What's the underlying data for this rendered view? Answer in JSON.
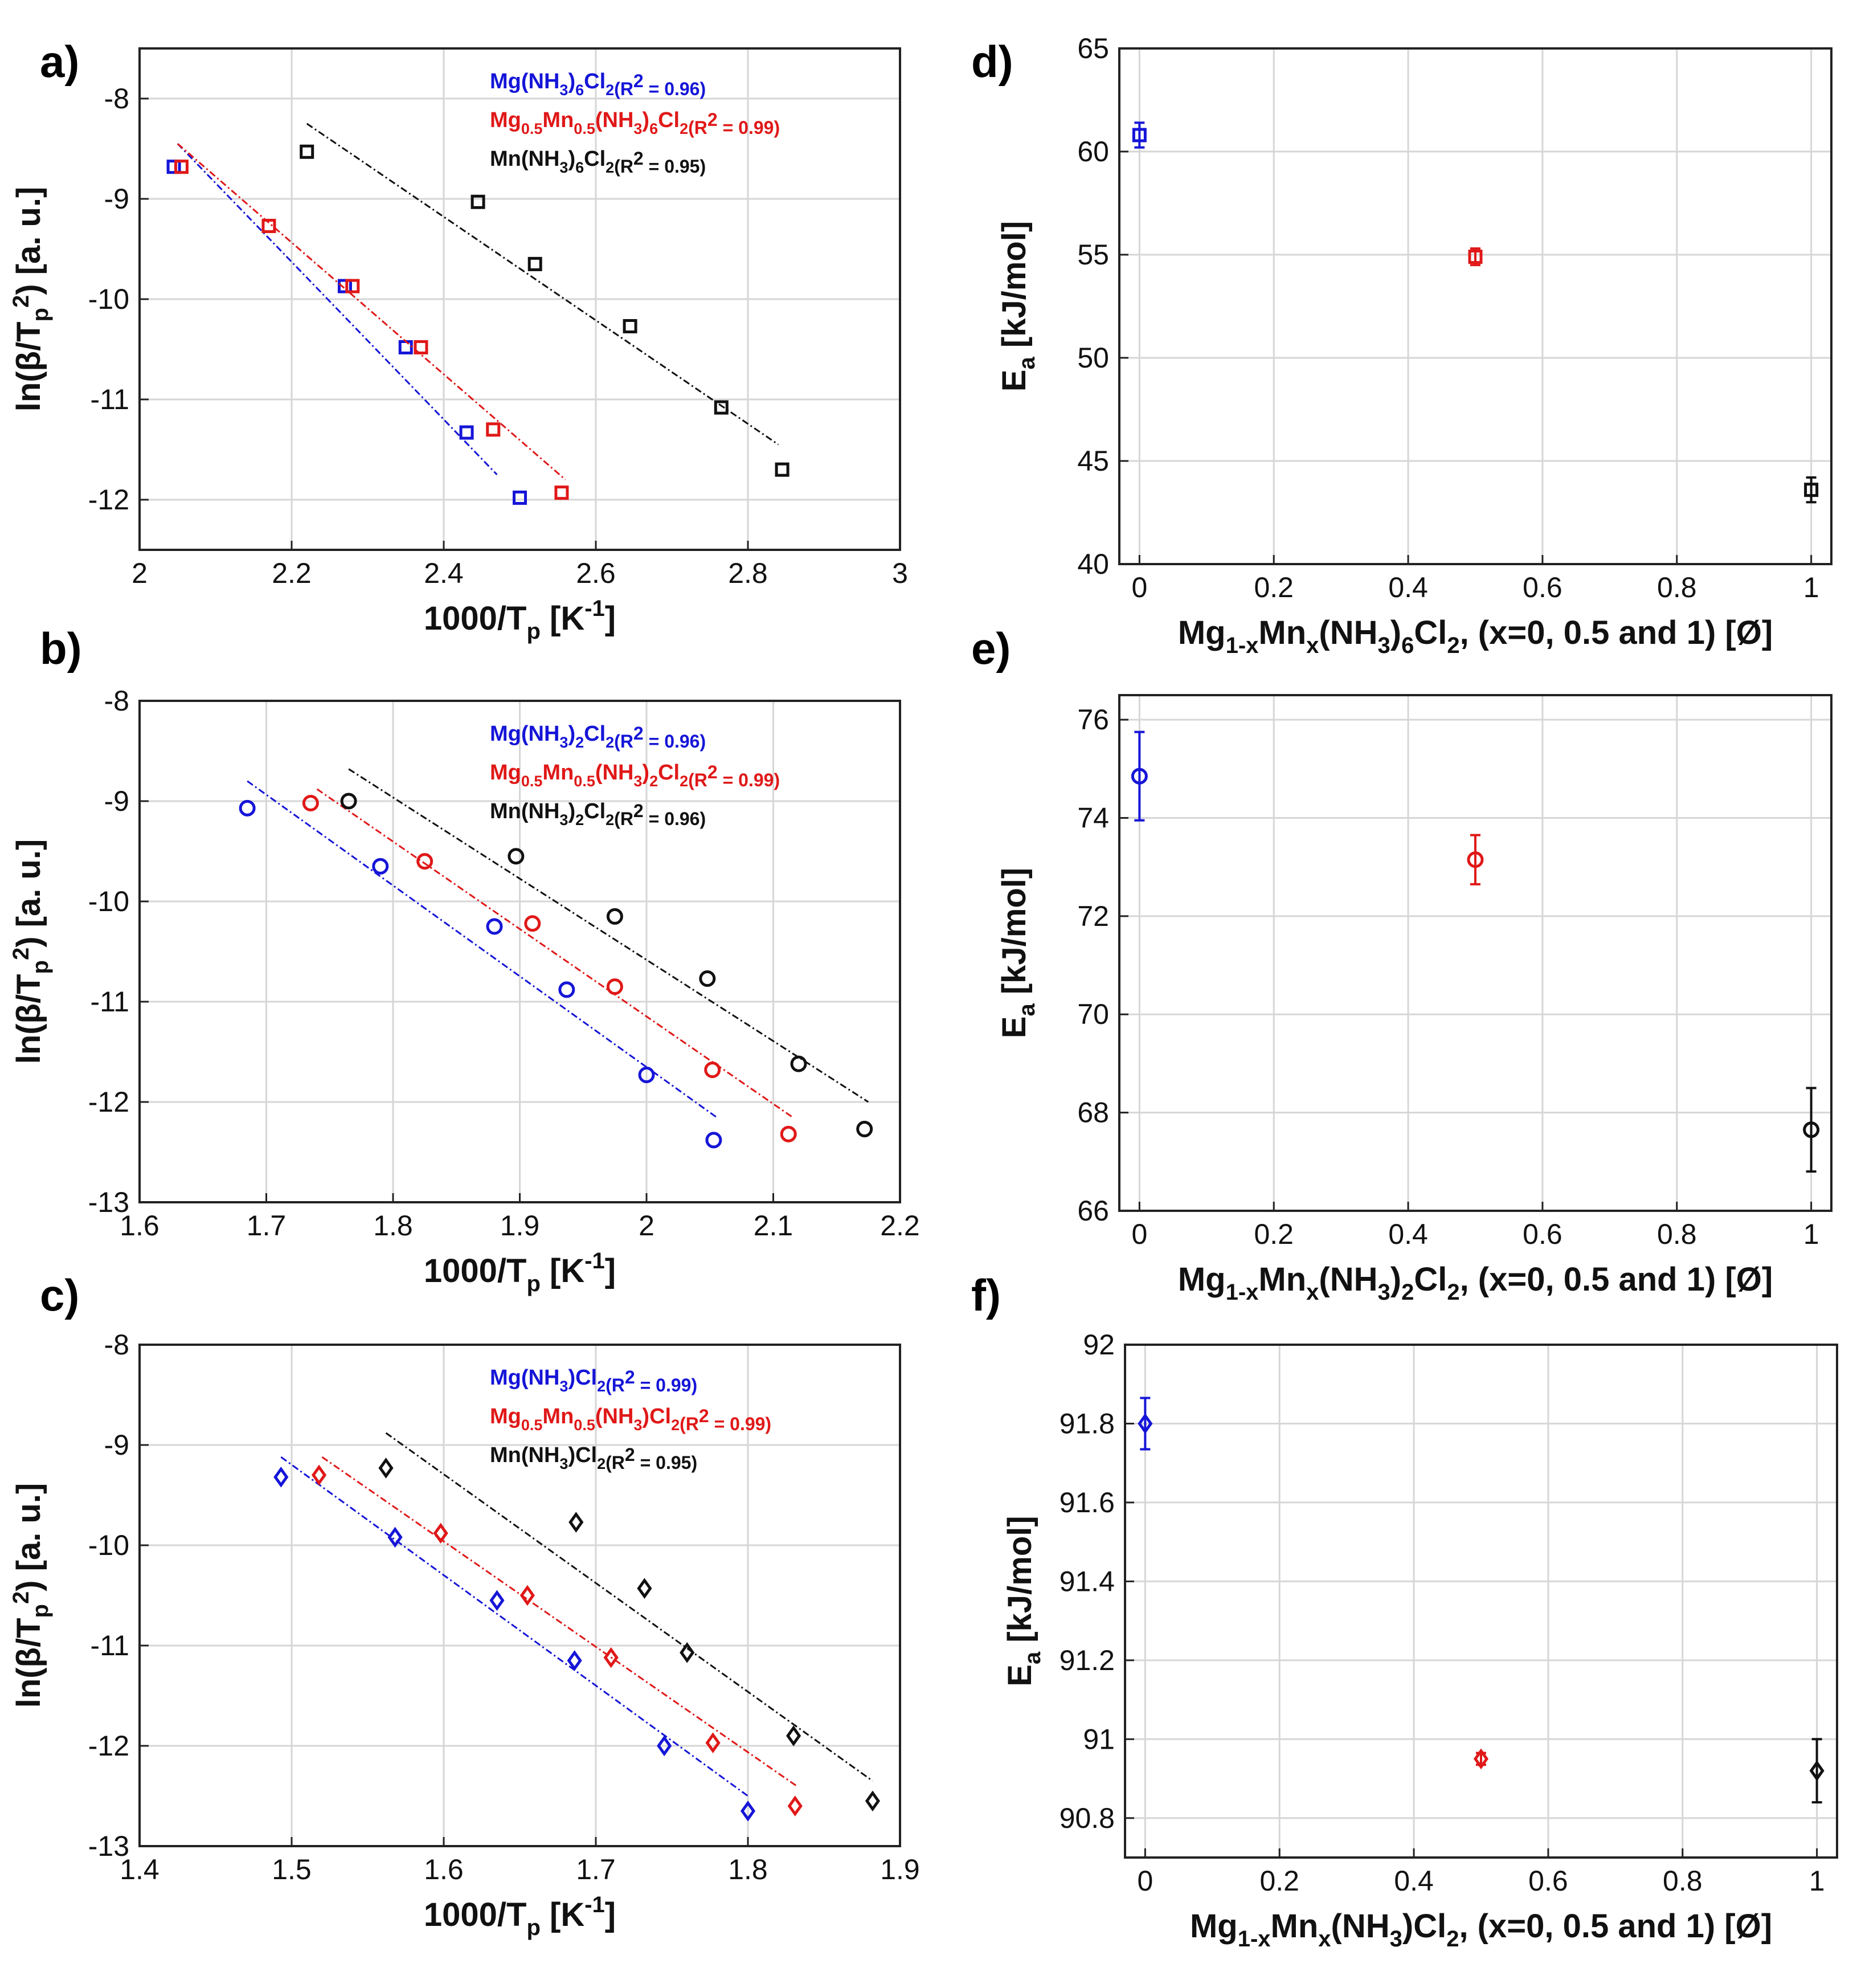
{
  "figure": {
    "colors": {
      "blue": "#1515d8",
      "red": "#e01818",
      "black": "#111111",
      "grid": "#d6d6d6"
    }
  },
  "chart_data": [
    {
      "id": "a",
      "panel_label": "a)",
      "type": "scatter",
      "xlabel": "1000/Tp [K-1]",
      "ylabel": "ln(β/Tp2) [a. u.]",
      "xlim": [
        2,
        3
      ],
      "ylim": [
        -12.5,
        -7.5
      ],
      "xticks": [
        2,
        2.2,
        2.4,
        2.6,
        2.8,
        3
      ],
      "yticks": [
        -12,
        -11,
        -10,
        -9,
        -8
      ],
      "xtick_labels": [
        "2",
        "2.2",
        "2.4",
        "2.6",
        "2.8",
        "3"
      ],
      "ytick_labels": [
        "-12",
        "-11",
        "-10",
        "-9",
        "-8"
      ],
      "marker": "square",
      "series": [
        {
          "name": "Mg(NH3)6Cl2",
          "label_base": "Mg(NH",
          "label_sub1": "3",
          "label_mid": ")",
          "label_sub2": "6",
          "label_tail": "Cl",
          "label_sub3": "2",
          "r2_text": "(R2 = 0.96)",
          "r2_pre": "(R",
          "r2_post": " = 0.96)",
          "color": "#1515d8",
          "x": [
            2.045,
            2.27,
            2.35,
            2.43,
            2.5
          ],
          "y": [
            -8.68,
            -9.87,
            -10.48,
            -11.33,
            -11.98
          ],
          "fit": {
            "x": [
              2.05,
              2.47
            ],
            "y": [
              -8.45,
              -11.75
            ]
          }
        },
        {
          "name": "Mg0.5Mn0.5(NH3)6Cl2",
          "label_base": "Mg",
          "label_sub0": "0.5",
          "label_pre": "Mn",
          "label_sub0b": "0.5",
          "label_mid0": "(NH",
          "label_sub1": "3",
          "label_mid": ")",
          "label_sub2": "6",
          "label_tail": "Cl",
          "label_sub3": "2",
          "r2_text": "(R2 = 0.99)",
          "r2_pre": "(R",
          "r2_post": " = 0.99)",
          "color": "#e01818",
          "x": [
            2.055,
            2.17,
            2.28,
            2.37,
            2.465,
            2.555
          ],
          "y": [
            -8.68,
            -9.27,
            -9.87,
            -10.48,
            -11.3,
            -11.93
          ],
          "fit": {
            "x": [
              2.05,
              2.56
            ],
            "y": [
              -8.45,
              -11.8
            ]
          }
        },
        {
          "name": "Mn(NH3)6Cl2",
          "label_base": "Mn(NH",
          "label_sub1": "3",
          "label_mid": ")",
          "label_sub2": "6",
          "label_tail": "Cl",
          "label_sub3": "2",
          "r2_text": "(R2 = 0.95)",
          "r2_pre": "(R",
          "r2_post": " = 0.95)",
          "color": "#111111",
          "x": [
            2.22,
            2.445,
            2.52,
            2.645,
            2.765,
            2.845
          ],
          "y": [
            -8.53,
            -9.03,
            -9.65,
            -10.27,
            -11.08,
            -11.7
          ],
          "fit": {
            "x": [
              2.22,
              2.84
            ],
            "y": [
              -8.25,
              -11.45
            ]
          }
        }
      ]
    },
    {
      "id": "b",
      "panel_label": "b)",
      "type": "scatter",
      "xlabel": "1000/Tp [K-1]",
      "ylabel": "ln(β/Tp2) [a. u.]",
      "xlim": [
        1.6,
        2.2
      ],
      "ylim": [
        -13,
        -8
      ],
      "xticks": [
        1.6,
        1.7,
        1.8,
        1.9,
        2,
        2.1,
        2.2
      ],
      "yticks": [
        -13,
        -12,
        -11,
        -10,
        -9,
        -8
      ],
      "xtick_labels": [
        "1.6",
        "1.7",
        "1.8",
        "1.9",
        "2",
        "2.1",
        "2.2"
      ],
      "ytick_labels": [
        "-13",
        "-12",
        "-11",
        "-10",
        "-9",
        "-8"
      ],
      "marker": "circle",
      "series": [
        {
          "name": "Mg(NH3)2Cl2",
          "label_base": "Mg(NH",
          "label_sub1": "3",
          "label_mid": ")",
          "label_sub2": "2",
          "label_tail": "Cl",
          "label_sub3": "2",
          "r2_text": "(R2 = 0.96)",
          "r2_pre": "(R",
          "r2_post": " = 0.96)",
          "color": "#1515d8",
          "x": [
            1.685,
            1.79,
            1.88,
            1.937,
            2.0,
            2.053
          ],
          "y": [
            -9.07,
            -9.65,
            -10.25,
            -10.88,
            -11.73,
            -12.38
          ],
          "fit": {
            "x": [
              1.685,
              2.055
            ],
            "y": [
              -8.8,
              -12.15
            ]
          }
        },
        {
          "name": "Mg0.5Mn0.5(NH3)2Cl2",
          "label_base": "Mg",
          "label_sub0": "0.5",
          "label_pre": "Mn",
          "label_sub0b": "0.5",
          "label_mid0": "(NH",
          "label_sub1": "3",
          "label_mid": ")",
          "label_sub2": "2",
          "label_tail": "Cl",
          "label_sub3": "2",
          "r2_text": "(R2 = 0.99)",
          "r2_pre": "(R",
          "r2_post": " = 0.99)",
          "color": "#e01818",
          "x": [
            1.735,
            1.825,
            1.91,
            1.975,
            2.052,
            2.112
          ],
          "y": [
            -9.02,
            -9.6,
            -10.22,
            -10.85,
            -11.68,
            -12.32
          ],
          "fit": {
            "x": [
              1.74,
              2.115
            ],
            "y": [
              -8.88,
              -12.15
            ]
          }
        },
        {
          "name": "Mn(NH3)2Cl2",
          "label_base": "Mn(NH",
          "label_sub1": "3",
          "label_mid": ")",
          "label_sub2": "2",
          "label_tail": "Cl",
          "label_sub3": "2",
          "r2_text": "(R2 = 0.96)",
          "r2_pre": "(R",
          "r2_post": " = 0.96)",
          "color": "#111111",
          "x": [
            1.765,
            1.897,
            1.975,
            2.048,
            2.12,
            2.172
          ],
          "y": [
            -9.0,
            -9.55,
            -10.15,
            -10.77,
            -11.62,
            -12.27
          ],
          "fit": {
            "x": [
              1.765,
              2.175
            ],
            "y": [
              -8.68,
              -12.0
            ]
          }
        }
      ]
    },
    {
      "id": "c",
      "panel_label": "c)",
      "type": "scatter",
      "xlabel": "1000/Tp [K-1]",
      "ylabel": "ln(β/Tp2) [a. u.]",
      "xlim": [
        1.4,
        1.9
      ],
      "ylim": [
        -13,
        -8
      ],
      "xticks": [
        1.4,
        1.5,
        1.6,
        1.7,
        1.8,
        1.9
      ],
      "yticks": [
        -13,
        -12,
        -11,
        -10,
        -9,
        -8
      ],
      "xtick_labels": [
        "1.4",
        "1.5",
        "1.6",
        "1.7",
        "1.8",
        "1.9"
      ],
      "ytick_labels": [
        "-13",
        "-12",
        "-11",
        "-10",
        "-9",
        "-8"
      ],
      "marker": "diamond",
      "series": [
        {
          "name": "Mg(NH3)Cl2",
          "label_base": "Mg(NH",
          "label_sub1": "3",
          "label_mid": ")",
          "label_sub2": "",
          "label_tail": "Cl",
          "label_sub3": "2",
          "r2_text": "(R2 = 0.99)",
          "r2_pre": "(R",
          "r2_post": " = 0.99)",
          "color": "#1515d8",
          "x": [
            1.493,
            1.568,
            1.635,
            1.686,
            1.745,
            1.8
          ],
          "y": [
            -9.32,
            -9.92,
            -10.55,
            -11.15,
            -12.0,
            -12.65
          ],
          "fit": {
            "x": [
              1.493,
              1.8
            ],
            "y": [
              -9.12,
              -12.5
            ]
          }
        },
        {
          "name": "Mg0.5Mn0.5(NH3)Cl2",
          "label_base": "Mg",
          "label_sub0": "0.5",
          "label_pre": "Mn",
          "label_sub0b": "0.5",
          "label_mid0": "(NH",
          "label_sub1": "3",
          "label_mid": ")",
          "label_sub2": "",
          "label_tail": "Cl",
          "label_sub3": "2",
          "r2_text": "(R2 = 0.99)",
          "r2_pre": "(R",
          "r2_post": " = 0.99)",
          "color": "#e01818",
          "x": [
            1.518,
            1.598,
            1.655,
            1.71,
            1.777,
            1.831
          ],
          "y": [
            -9.3,
            -9.88,
            -10.5,
            -11.12,
            -11.97,
            -12.6
          ],
          "fit": {
            "x": [
              1.52,
              1.832
            ],
            "y": [
              -9.12,
              -12.4
            ]
          }
        },
        {
          "name": "Mn(NH3)Cl2",
          "label_base": "Mn(NH",
          "label_sub1": "3",
          "label_mid": ")",
          "label_sub2": "",
          "label_tail": "Cl",
          "label_sub3": "2",
          "r2_text": "(R2 = 0.95)",
          "r2_pre": "(R",
          "r2_post": " = 0.95)",
          "color": "#111111",
          "x": [
            1.562,
            1.687,
            1.732,
            1.76,
            1.83,
            1.882
          ],
          "y": [
            -9.23,
            -9.77,
            -10.43,
            -11.07,
            -11.9,
            -12.55
          ],
          "fit": {
            "x": [
              1.562,
              1.882
            ],
            "y": [
              -8.88,
              -12.35
            ]
          }
        }
      ]
    },
    {
      "id": "d",
      "panel_label": "d)",
      "type": "scatter-errorbar",
      "xlabel": "Mg1-xMnx(NH3)6Cl2, (x=0, 0.5 and 1) [Ø]",
      "ylabel": "Ea [kJ/mol]",
      "xlim": [
        -0.03,
        1.03
      ],
      "ylim": [
        40,
        65
      ],
      "xticks": [
        0,
        0.2,
        0.4,
        0.6,
        0.8,
        1
      ],
      "yticks": [
        40,
        45,
        50,
        55,
        60,
        65
      ],
      "xtick_labels": [
        "0",
        "0.2",
        "0.4",
        "0.6",
        "0.8",
        "1"
      ],
      "ytick_labels": [
        "40",
        "45",
        "50",
        "55",
        "60",
        "65"
      ],
      "marker": "square",
      "points": [
        {
          "x": 0,
          "y": 60.8,
          "err": 0.6,
          "color": "#1515d8"
        },
        {
          "x": 0.5,
          "y": 54.9,
          "err": 0.4,
          "color": "#e01818"
        },
        {
          "x": 1,
          "y": 43.6,
          "err": 0.6,
          "color": "#111111"
        }
      ]
    },
    {
      "id": "e",
      "panel_label": "e)",
      "type": "scatter-errorbar",
      "xlabel": "Mg1-xMnx(NH3)2Cl2, (x=0, 0.5 and 1) [Ø]",
      "ylabel": "Ea [kJ/mol]",
      "xlim": [
        -0.03,
        1.03
      ],
      "ylim": [
        66,
        76.5
      ],
      "xticks": [
        0,
        0.2,
        0.4,
        0.6,
        0.8,
        1
      ],
      "yticks": [
        66,
        68,
        70,
        72,
        74,
        76
      ],
      "xtick_labels": [
        "0",
        "0.2",
        "0.4",
        "0.6",
        "0.8",
        "1"
      ],
      "ytick_labels": [
        "66",
        "68",
        "70",
        "72",
        "74",
        "76"
      ],
      "marker": "circle",
      "points": [
        {
          "x": 0,
          "y": 74.85,
          "err": 0.9,
          "color": "#1515d8"
        },
        {
          "x": 0.5,
          "y": 73.15,
          "err": 0.5,
          "color": "#e01818"
        },
        {
          "x": 1,
          "y": 67.65,
          "err": 0.85,
          "color": "#111111"
        }
      ]
    },
    {
      "id": "f",
      "panel_label": "f)",
      "type": "scatter-errorbar",
      "xlabel": "Mg1-xMnx(NH3)Cl2, (x=0, 0.5 and 1) [Ø]",
      "ylabel": "Ea [kJ/mol]",
      "xlim": [
        -0.03,
        1.03
      ],
      "ylim": [
        90.7,
        92
      ],
      "xticks": [
        0,
        0.2,
        0.4,
        0.6,
        0.8,
        1
      ],
      "yticks": [
        90.8,
        91,
        91.2,
        91.4,
        91.6,
        91.8,
        92
      ],
      "xtick_labels": [
        "0",
        "0.2",
        "0.4",
        "0.6",
        "0.8",
        "1"
      ],
      "ytick_labels": [
        "90.8",
        "91",
        "91.2",
        "91.4",
        "91.6",
        "91.8",
        "92"
      ],
      "marker": "diamond",
      "points": [
        {
          "x": 0,
          "y": 91.8,
          "err": 0.065,
          "color": "#1515d8"
        },
        {
          "x": 0.5,
          "y": 90.95,
          "err": 0.015,
          "color": "#e01818"
        },
        {
          "x": 1,
          "y": 90.92,
          "err": 0.08,
          "color": "#111111"
        }
      ]
    }
  ]
}
